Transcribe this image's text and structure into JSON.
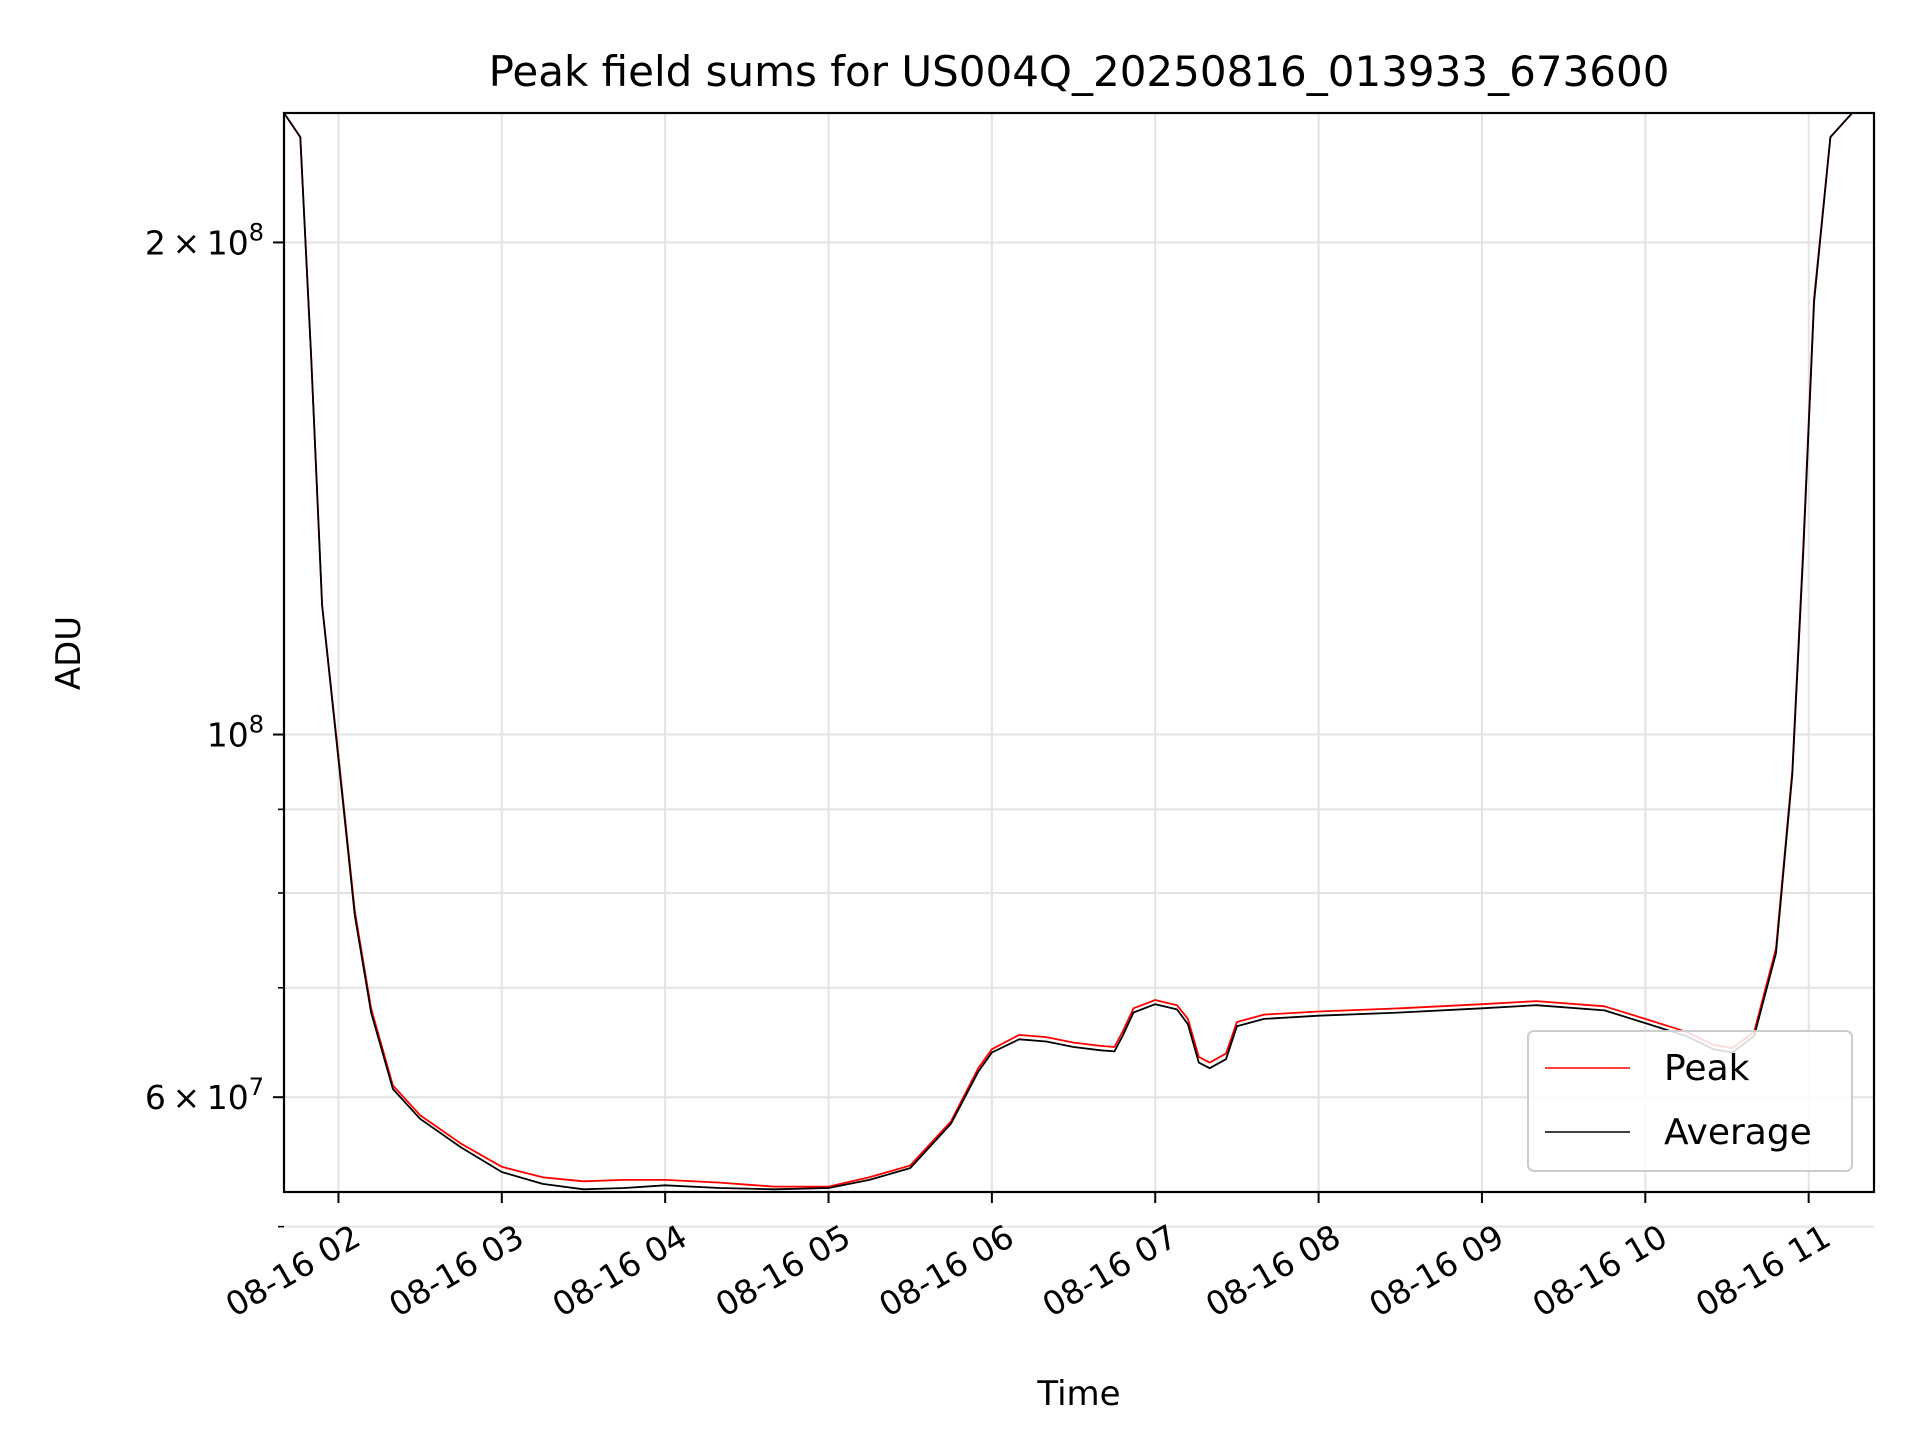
{
  "chart_data": {
    "type": "line",
    "title": "Peak field sums for US004Q_20250816_013933_673600",
    "xlabel": "Time",
    "ylabel": "ADU",
    "yscale": "log",
    "grid": true,
    "legend_position": "lower-right",
    "xlim": [
      "2025-08-16 01:40",
      "2025-08-16 11:24"
    ],
    "ylim": [
      52500000,
      240000000
    ],
    "x_ticks": [
      {
        "value": "2025-08-16 02:00",
        "label": "08-16 02"
      },
      {
        "value": "2025-08-16 03:00",
        "label": "08-16 03"
      },
      {
        "value": "2025-08-16 04:00",
        "label": "08-16 04"
      },
      {
        "value": "2025-08-16 05:00",
        "label": "08-16 05"
      },
      {
        "value": "2025-08-16 06:00",
        "label": "08-16 06"
      },
      {
        "value": "2025-08-16 07:00",
        "label": "08-16 07"
      },
      {
        "value": "2025-08-16 08:00",
        "label": "08-16 08"
      },
      {
        "value": "2025-08-16 09:00",
        "label": "08-16 09"
      },
      {
        "value": "2025-08-16 10:00",
        "label": "08-16 10"
      },
      {
        "value": "2025-08-16 11:00",
        "label": "08-16 11"
      }
    ],
    "y_major_ticks": [
      {
        "value": 200000000,
        "mantissa": "2",
        "times": "×",
        "base": "10",
        "exp": "8"
      },
      {
        "value": 100000000,
        "mantissa": "",
        "times": "",
        "base": "10",
        "exp": "8"
      },
      {
        "value": 60000000,
        "mantissa": "6",
        "times": "×",
        "base": "10",
        "exp": "7"
      }
    ],
    "y_minor_ticks": [
      90000000,
      80000000,
      70000000,
      50000000
    ],
    "series": [
      {
        "name": "Peak",
        "color": "#ff0000",
        "points": [
          [
            "2025-08-16 01:40",
            240000000
          ],
          [
            "2025-08-16 01:46",
            232000000
          ],
          [
            "2025-08-16 01:50",
            170000000
          ],
          [
            "2025-08-16 01:54",
            120000000
          ],
          [
            "2025-08-16 02:00",
            97000000
          ],
          [
            "2025-08-16 02:06",
            78000000
          ],
          [
            "2025-08-16 02:12",
            68000000
          ],
          [
            "2025-08-16 02:20",
            61000000
          ],
          [
            "2025-08-16 02:30",
            58500000
          ],
          [
            "2025-08-16 02:45",
            56200000
          ],
          [
            "2025-08-16 03:00",
            54400000
          ],
          [
            "2025-08-16 03:15",
            53600000
          ],
          [
            "2025-08-16 03:30",
            53300000
          ],
          [
            "2025-08-16 03:45",
            53400000
          ],
          [
            "2025-08-16 04:00",
            53400000
          ],
          [
            "2025-08-16 04:20",
            53200000
          ],
          [
            "2025-08-16 04:40",
            52900000
          ],
          [
            "2025-08-16 05:00",
            52900000
          ],
          [
            "2025-08-16 05:15",
            53600000
          ],
          [
            "2025-08-16 05:30",
            54500000
          ],
          [
            "2025-08-16 05:45",
            58000000
          ],
          [
            "2025-08-16 05:55",
            62500000
          ],
          [
            "2025-08-16 06:00",
            64200000
          ],
          [
            "2025-08-16 06:10",
            65500000
          ],
          [
            "2025-08-16 06:20",
            65300000
          ],
          [
            "2025-08-16 06:30",
            64800000
          ],
          [
            "2025-08-16 06:40",
            64500000
          ],
          [
            "2025-08-16 06:45",
            64400000
          ],
          [
            "2025-08-16 06:48",
            65800000
          ],
          [
            "2025-08-16 06:52",
            68000000
          ],
          [
            "2025-08-16 07:00",
            68800000
          ],
          [
            "2025-08-16 07:08",
            68300000
          ],
          [
            "2025-08-16 07:12",
            67000000
          ],
          [
            "2025-08-16 07:16",
            63500000
          ],
          [
            "2025-08-16 07:20",
            63000000
          ],
          [
            "2025-08-16 07:26",
            63800000
          ],
          [
            "2025-08-16 07:30",
            66700000
          ],
          [
            "2025-08-16 07:40",
            67400000
          ],
          [
            "2025-08-16 08:00",
            67700000
          ],
          [
            "2025-08-16 08:30",
            68000000
          ],
          [
            "2025-08-16 09:00",
            68400000
          ],
          [
            "2025-08-16 09:20",
            68700000
          ],
          [
            "2025-08-16 09:45",
            68200000
          ],
          [
            "2025-08-16 10:00",
            67000000
          ],
          [
            "2025-08-16 10:15",
            65800000
          ],
          [
            "2025-08-16 10:25",
            64600000
          ],
          [
            "2025-08-16 10:32",
            64300000
          ],
          [
            "2025-08-16 10:40",
            65800000
          ],
          [
            "2025-08-16 10:48",
            74000000
          ],
          [
            "2025-08-16 10:54",
            95000000
          ],
          [
            "2025-08-16 10:58",
            130000000
          ],
          [
            "2025-08-16 11:02",
            185000000
          ],
          [
            "2025-08-16 11:08",
            232000000
          ],
          [
            "2025-08-16 11:16",
            240000000
          ],
          [
            "2025-08-16 11:24",
            240000000
          ]
        ]
      },
      {
        "name": "Average",
        "color": "#000000",
        "points": [
          [
            "2025-08-16 01:40",
            240000000
          ],
          [
            "2025-08-16 01:46",
            232000000
          ],
          [
            "2025-08-16 01:50",
            170000000
          ],
          [
            "2025-08-16 01:54",
            120000000
          ],
          [
            "2025-08-16 02:00",
            96500000
          ],
          [
            "2025-08-16 02:06",
            77500000
          ],
          [
            "2025-08-16 02:12",
            67600000
          ],
          [
            "2025-08-16 02:20",
            60700000
          ],
          [
            "2025-08-16 02:30",
            58200000
          ],
          [
            "2025-08-16 02:45",
            55900000
          ],
          [
            "2025-08-16 03:00",
            54000000
          ],
          [
            "2025-08-16 03:15",
            53100000
          ],
          [
            "2025-08-16 03:30",
            52700000
          ],
          [
            "2025-08-16 03:45",
            52800000
          ],
          [
            "2025-08-16 04:00",
            53000000
          ],
          [
            "2025-08-16 04:20",
            52800000
          ],
          [
            "2025-08-16 04:40",
            52700000
          ],
          [
            "2025-08-16 05:00",
            52800000
          ],
          [
            "2025-08-16 05:15",
            53400000
          ],
          [
            "2025-08-16 05:30",
            54300000
          ],
          [
            "2025-08-16 05:45",
            57800000
          ],
          [
            "2025-08-16 05:55",
            62200000
          ],
          [
            "2025-08-16 06:00",
            63900000
          ],
          [
            "2025-08-16 06:10",
            65100000
          ],
          [
            "2025-08-16 06:20",
            64900000
          ],
          [
            "2025-08-16 06:30",
            64400000
          ],
          [
            "2025-08-16 06:40",
            64100000
          ],
          [
            "2025-08-16 06:45",
            64000000
          ],
          [
            "2025-08-16 06:48",
            65400000
          ],
          [
            "2025-08-16 06:52",
            67600000
          ],
          [
            "2025-08-16 07:00",
            68400000
          ],
          [
            "2025-08-16 07:08",
            67900000
          ],
          [
            "2025-08-16 07:12",
            66500000
          ],
          [
            "2025-08-16 07:16",
            63000000
          ],
          [
            "2025-08-16 07:20",
            62500000
          ],
          [
            "2025-08-16 07:26",
            63300000
          ],
          [
            "2025-08-16 07:30",
            66300000
          ],
          [
            "2025-08-16 07:40",
            67000000
          ],
          [
            "2025-08-16 08:00",
            67300000
          ],
          [
            "2025-08-16 08:30",
            67600000
          ],
          [
            "2025-08-16 09:00",
            68000000
          ],
          [
            "2025-08-16 09:20",
            68300000
          ],
          [
            "2025-08-16 09:45",
            67800000
          ],
          [
            "2025-08-16 10:00",
            66600000
          ],
          [
            "2025-08-16 10:15",
            65400000
          ],
          [
            "2025-08-16 10:25",
            64200000
          ],
          [
            "2025-08-16 10:32",
            63900000
          ],
          [
            "2025-08-16 10:40",
            65400000
          ],
          [
            "2025-08-16 10:48",
            73500000
          ],
          [
            "2025-08-16 10:54",
            94500000
          ],
          [
            "2025-08-16 10:58",
            129000000
          ],
          [
            "2025-08-16 11:02",
            184000000
          ],
          [
            "2025-08-16 11:08",
            232000000
          ],
          [
            "2025-08-16 11:16",
            240000000
          ],
          [
            "2025-08-16 11:24",
            240000000
          ]
        ]
      }
    ]
  }
}
